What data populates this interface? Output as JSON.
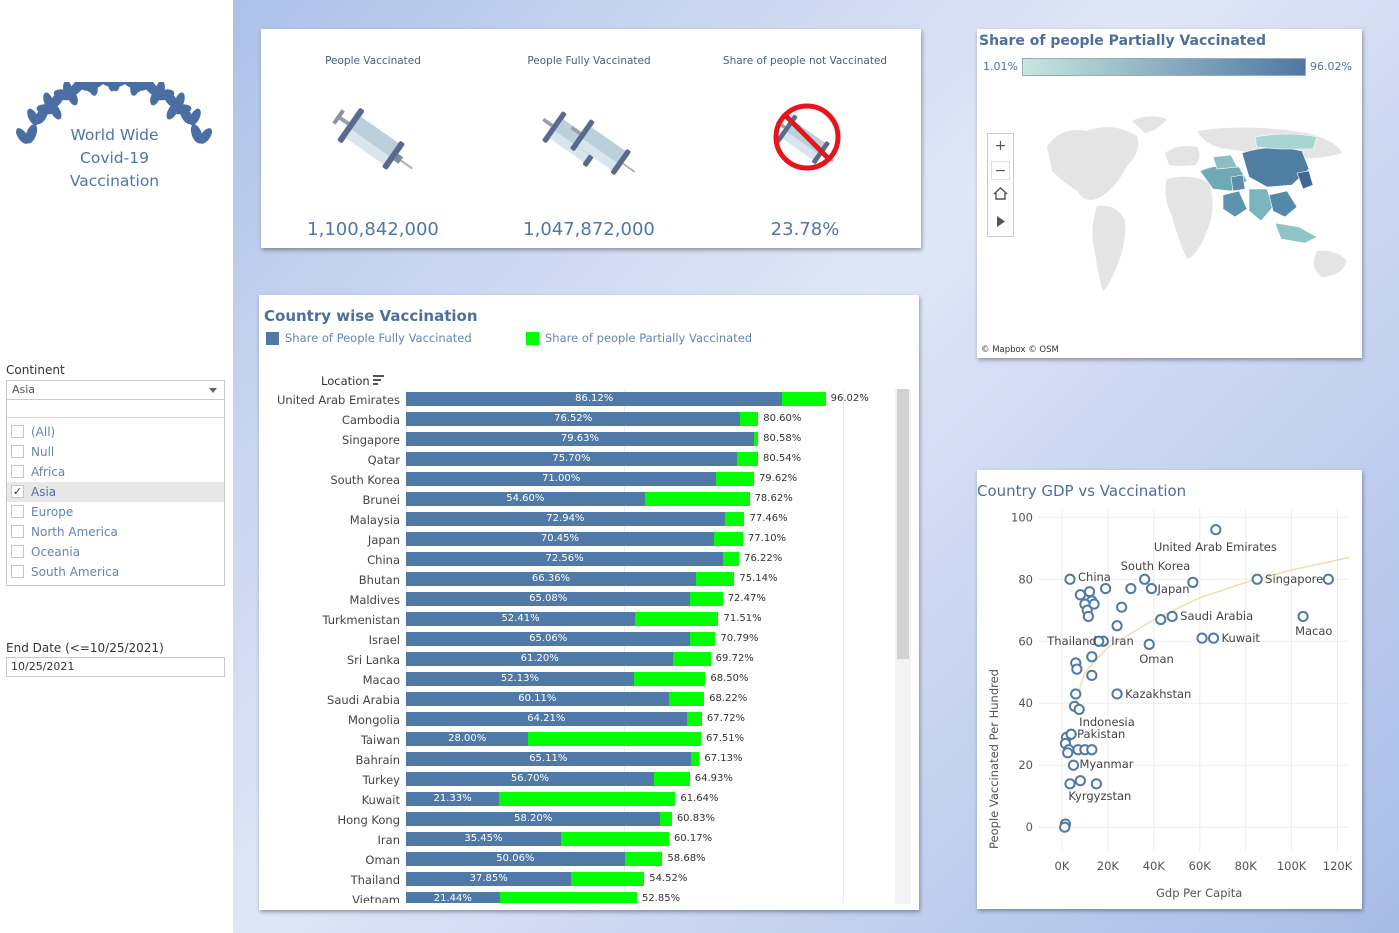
{
  "branding": {
    "line1": "World Wide",
    "line2": "Covid-19",
    "line3": "Vaccination"
  },
  "continent_filter": {
    "label": "Continent",
    "selected": "Asia",
    "options": [
      {
        "label": "(All)",
        "checked": false
      },
      {
        "label": "Null",
        "checked": false
      },
      {
        "label": "Africa",
        "checked": false
      },
      {
        "label": "Asia",
        "checked": true
      },
      {
        "label": "Europe",
        "checked": false
      },
      {
        "label": "North America",
        "checked": false
      },
      {
        "label": "Oceania",
        "checked": false
      },
      {
        "label": "South America",
        "checked": false
      }
    ]
  },
  "date_filter": {
    "label": "End Date (<=10/25/2021)",
    "value": "10/25/2021"
  },
  "kpis": [
    {
      "label": "People Vaccinated",
      "value": "1,100,842,000",
      "icon": "syringe-icon"
    },
    {
      "label": "People Fully Vaccinated",
      "value": "1,047,872,000",
      "icon": "double-syringe-icon"
    },
    {
      "label": "Share of people not Vaccinated",
      "value": "23.78%",
      "icon": "no-vaccine-icon"
    }
  ],
  "bar_chart": {
    "title": "Country wise Vaccination",
    "legend_full": "Share of People Fully Vaccinated",
    "legend_partial": "Share of people Partially Vaccinated",
    "location_header": "Location",
    "colors": {
      "full": "#4f79a7",
      "partial": "#00ff00"
    }
  },
  "chart_data": [
    {
      "type": "bar",
      "title": "Country wise Vaccination",
      "categories": [
        "United Arab Emirates",
        "Cambodia",
        "Singapore",
        "Qatar",
        "South Korea",
        "Brunei",
        "Malaysia",
        "Japan",
        "China",
        "Bhutan",
        "Maldives",
        "Turkmenistan",
        "Israel",
        "Sri Lanka",
        "Macao",
        "Saudi Arabia",
        "Mongolia",
        "Taiwan",
        "Bahrain",
        "Turkey",
        "Kuwait",
        "Hong Kong",
        "Iran",
        "Oman",
        "Thailand",
        "Vietnam"
      ],
      "series": [
        {
          "name": "Share of People Fully Vaccinated",
          "values": [
            86.12,
            76.52,
            79.63,
            75.7,
            71.0,
            54.6,
            72.94,
            70.45,
            72.56,
            66.36,
            65.08,
            52.41,
            65.06,
            61.2,
            52.13,
            60.11,
            64.21,
            28.0,
            65.11,
            56.7,
            21.33,
            58.2,
            35.45,
            50.06,
            37.85,
            21.44
          ]
        },
        {
          "name": "Share of people Partially Vaccinated",
          "values": [
            96.02,
            80.6,
            80.58,
            80.54,
            79.62,
            78.62,
            77.46,
            77.1,
            76.22,
            75.14,
            72.47,
            71.51,
            70.79,
            69.72,
            68.5,
            68.22,
            67.72,
            67.51,
            67.13,
            64.93,
            61.64,
            60.83,
            60.17,
            58.68,
            54.52,
            52.85
          ]
        }
      ],
      "full_labels": [
        "86.12%",
        "76.52%",
        "79.63%",
        "75.70%",
        "71.00%",
        "54.60%",
        "72.94%",
        "70.45%",
        "72.56%",
        "66.36%",
        "65.08%",
        "52.41%",
        "65.06%",
        "61.20%",
        "52.13%",
        "60.11%",
        "64.21%",
        "28.00%",
        "65.11%",
        "56.70%",
        "21.33%",
        "58.20%",
        "35.45%",
        "50.06%",
        "37.85%",
        "21.44%"
      ],
      "total_labels": [
        "96.02%",
        "80.60%",
        "80.58%",
        "80.54%",
        "79.62%",
        "78.62%",
        "77.46%",
        "77.10%",
        "76.22%",
        "75.14%",
        "72.47%",
        "71.51%",
        "70.79%",
        "69.72%",
        "68.50%",
        "68.22%",
        "67.72%",
        "67.51%",
        "67.13%",
        "64.93%",
        "61.64%",
        "60.83%",
        "60.17%",
        "58.68%",
        "54.52%",
        "52.85%"
      ]
    },
    {
      "type": "scatter",
      "title": "Country GDP vs Vaccination",
      "xlabel": "Gdp Per Capita",
      "ylabel": "People Vaccinated Per Hundred",
      "xlim": [
        -10000,
        125000
      ],
      "ylim": [
        -8,
        103
      ],
      "xticks": [
        "0K",
        "20K",
        "40K",
        "60K",
        "80K",
        "100K",
        "120K"
      ],
      "xtick_values": [
        0,
        20000,
        40000,
        60000,
        80000,
        100000,
        120000
      ],
      "yticks": [
        "0",
        "20",
        "40",
        "60",
        "80",
        "100"
      ],
      "ytick_values": [
        0,
        20,
        40,
        60,
        80,
        100
      ],
      "points": [
        [
          67000,
          96
        ],
        [
          116000,
          80
        ],
        [
          85000,
          80
        ],
        [
          105000,
          68
        ],
        [
          36000,
          80
        ],
        [
          39000,
          77
        ],
        [
          57000,
          79
        ],
        [
          43000,
          67
        ],
        [
          48000,
          68
        ],
        [
          61000,
          61
        ],
        [
          66000,
          61
        ],
        [
          3500,
          80
        ],
        [
          8000,
          75
        ],
        [
          12000,
          76
        ],
        [
          13000,
          73
        ],
        [
          14000,
          72
        ],
        [
          10000,
          72
        ],
        [
          11000,
          70
        ],
        [
          11500,
          68
        ],
        [
          19000,
          77
        ],
        [
          26000,
          71
        ],
        [
          30000,
          77
        ],
        [
          24000,
          65
        ],
        [
          18000,
          60
        ],
        [
          38000,
          59
        ],
        [
          16000,
          60
        ],
        [
          13000,
          55
        ],
        [
          13000,
          49
        ],
        [
          6000,
          53
        ],
        [
          6500,
          51
        ],
        [
          24000,
          43
        ],
        [
          6000,
          43
        ],
        [
          5500,
          39
        ],
        [
          7500,
          38
        ],
        [
          2000,
          29
        ],
        [
          4000,
          30
        ],
        [
          1500,
          27
        ],
        [
          3000,
          25
        ],
        [
          7000,
          25
        ],
        [
          10000,
          25
        ],
        [
          13000,
          25
        ],
        [
          2500,
          24
        ],
        [
          5000,
          20
        ],
        [
          8000,
          15
        ],
        [
          3500,
          14
        ],
        [
          15000,
          14
        ],
        [
          1500,
          1
        ],
        [
          1200,
          0
        ]
      ],
      "labels": [
        {
          "text": "United Arab Emirates",
          "x": 67000,
          "y": 96
        },
        {
          "text": "South Korea",
          "x": 36000,
          "y": 80
        },
        {
          "text": "China",
          "x": 3500,
          "y": 80
        },
        {
          "text": "Japan",
          "x": 39000,
          "y": 77
        },
        {
          "text": "Singapore",
          "x": 85000,
          "y": 80
        },
        {
          "text": "Saudi Arabia",
          "x": 48000,
          "y": 68
        },
        {
          "text": "Macao",
          "x": 105000,
          "y": 68
        },
        {
          "text": "Kuwait",
          "x": 66000,
          "y": 61
        },
        {
          "text": "Thailand",
          "x": 18000,
          "y": 60
        },
        {
          "text": "Iran",
          "x": 18000,
          "y": 60
        },
        {
          "text": "Oman",
          "x": 38000,
          "y": 59
        },
        {
          "text": "Kazakhstan",
          "x": 24000,
          "y": 43
        },
        {
          "text": "Indonesia",
          "x": 7500,
          "y": 38
        },
        {
          "text": "Pakistan",
          "x": 4000,
          "y": 30
        },
        {
          "text": "Myanmar",
          "x": 5000,
          "y": 20
        },
        {
          "text": "Kyrgyzstan",
          "x": 8000,
          "y": 15
        }
      ],
      "trend": [
        [
          5000,
          38
        ],
        [
          10000,
          50
        ],
        [
          20000,
          58
        ],
        [
          40000,
          67
        ],
        [
          60000,
          74
        ],
        [
          80000,
          79
        ],
        [
          100000,
          83
        ],
        [
          125000,
          87
        ]
      ]
    }
  ],
  "map": {
    "title": "Share of people Partially Vaccinated",
    "min_label": "1.01%",
    "max_label": "96.02%",
    "credit": "© Mapbox  © OSM",
    "controls": [
      "zoom-in-icon",
      "zoom-out-icon",
      "home-icon",
      "play-icon"
    ]
  },
  "scatter": {
    "title": "Country GDP vs Vaccination",
    "xlabel": "Gdp Per Capita",
    "ylabel": "People Vaccinated Per Hundred"
  }
}
